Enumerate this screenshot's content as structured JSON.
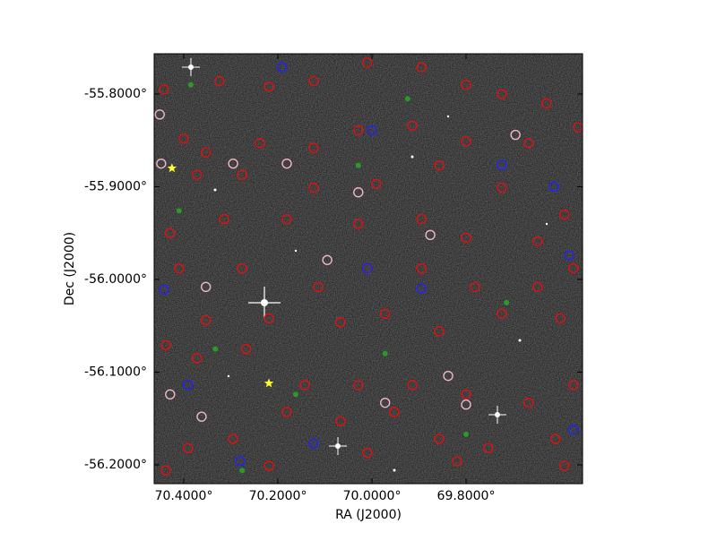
{
  "chart_data": {
    "type": "scatter",
    "xlabel": "RA (J2000)",
    "ylabel": "Dec (J2000)",
    "xlim": [
      70.4629,
      69.5524
    ],
    "ylim": [
      -56.2203,
      -55.7565
    ],
    "xticks": [
      {
        "value": 70.4,
        "label": "70.4000°"
      },
      {
        "value": 70.2,
        "label": "70.2000°"
      },
      {
        "value": 70.0,
        "label": "70.0000°"
      },
      {
        "value": 69.8,
        "label": "69.8000°"
      }
    ],
    "yticks": [
      {
        "value": -55.8,
        "label": "-55.8000°"
      },
      {
        "value": -55.9,
        "label": "-55.9000°"
      },
      {
        "value": -56.0,
        "label": "-56.0000°"
      },
      {
        "value": -56.1,
        "label": "-56.1000°"
      },
      {
        "value": -56.2,
        "label": "-56.2000°"
      }
    ],
    "series": [
      {
        "color": "#e01010",
        "marker": "circle",
        "x": [
          70.442,
          70.4,
          70.324,
          70.219,
          70.124,
          70.01,
          69.895,
          69.8,
          69.724,
          69.629,
          69.562,
          69.667,
          69.8,
          69.914,
          70.029,
          70.124,
          70.238,
          70.353,
          70.372,
          70.276,
          70.124,
          69.991,
          69.857,
          69.724,
          69.591,
          69.648,
          69.8,
          69.895,
          70.029,
          70.181,
          70.314,
          70.429,
          70.41,
          70.276,
          70.114,
          70.01,
          69.895,
          69.781,
          69.648,
          69.572,
          69.6,
          69.724,
          69.857,
          69.972,
          70.067,
          70.219,
          70.353,
          70.438,
          70.372,
          70.267,
          70.143,
          70.029,
          69.914,
          69.8,
          69.667,
          69.572,
          69.61,
          69.753,
          69.857,
          69.953,
          70.067,
          70.181,
          70.295,
          70.391,
          70.438,
          70.219,
          70.01,
          69.819,
          69.591
        ],
        "values": [
          -55.795,
          -55.848,
          -55.786,
          -55.792,
          -55.786,
          -55.766,
          -55.771,
          -55.79,
          -55.8,
          -55.81,
          -55.836,
          -55.853,
          -55.851,
          -55.834,
          -55.839,
          -55.858,
          -55.853,
          -55.863,
          -55.887,
          -55.887,
          -55.901,
          -55.897,
          -55.877,
          -55.901,
          -55.93,
          -55.959,
          -55.955,
          -55.935,
          -55.94,
          -55.935,
          -55.935,
          -55.95,
          -55.988,
          -55.988,
          -56.008,
          -55.988,
          -55.988,
          -56.008,
          -56.008,
          -55.988,
          -56.042,
          -56.037,
          -56.056,
          -56.037,
          -56.046,
          -56.042,
          -56.044,
          -56.071,
          -56.085,
          -56.075,
          -56.114,
          -56.114,
          -56.114,
          -56.124,
          -56.133,
          -56.114,
          -56.172,
          -56.182,
          -56.172,
          -56.143,
          -56.153,
          -56.143,
          -56.172,
          -56.182,
          -56.206,
          -56.201,
          -56.187,
          -56.196,
          -56.201
        ]
      },
      {
        "color": "#f2b6c6",
        "marker": "circle",
        "x": [
          70.451,
          70.448,
          70.295,
          70.181,
          70.029,
          69.876,
          70.353,
          70.095,
          69.972,
          69.838,
          69.8,
          70.362,
          69.695,
          70.429
        ],
        "values": [
          -55.822,
          -55.875,
          -55.875,
          -55.875,
          -55.906,
          -55.952,
          -56.008,
          -55.979,
          -56.133,
          -56.104,
          -56.135,
          -56.148,
          -55.844,
          -56.124
        ]
      },
      {
        "color": "#2222ff",
        "marker": "circle",
        "x": [
          70.191,
          70.0,
          70.01,
          69.895,
          69.724,
          69.613,
          69.581,
          70.442,
          70.124,
          70.28,
          69.572,
          70.391
        ],
        "values": [
          -55.771,
          -55.839,
          -55.988,
          -56.01,
          -55.877,
          -55.9,
          -55.974,
          -56.011,
          -56.177,
          -56.196,
          -56.162,
          -56.114
        ]
      },
      {
        "color": "#2a9a2a",
        "marker": "dot",
        "x": [
          70.385,
          69.924,
          70.41,
          69.714,
          70.333,
          69.972,
          70.162,
          69.8,
          70.276,
          70.029
        ],
        "values": [
          -55.79,
          -55.805,
          -55.926,
          -56.025,
          -56.075,
          -56.08,
          -56.124,
          -56.167,
          -56.206,
          -55.877
        ]
      },
      {
        "color": "#ffff33",
        "marker": "star",
        "x": [
          70.425,
          70.219
        ],
        "values": [
          -55.88,
          -56.112
        ]
      }
    ]
  }
}
